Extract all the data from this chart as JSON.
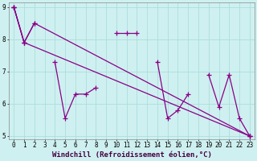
{
  "xlabel": "Windchill (Refroidissement éolien,°C)",
  "background_color": "#cff0f0",
  "line_color": "#880088",
  "grid_color": "#aadddd",
  "x_data": [
    0,
    1,
    2,
    3,
    4,
    5,
    6,
    7,
    8,
    9,
    10,
    11,
    12,
    13,
    14,
    15,
    16,
    17,
    18,
    19,
    20,
    21,
    22,
    23
  ],
  "series1": [
    9.0,
    7.9,
    8.5,
    null,
    7.3,
    5.55,
    6.3,
    6.3,
    6.5,
    null,
    8.2,
    8.2,
    8.2,
    null,
    7.3,
    5.55,
    5.8,
    6.3,
    null,
    6.9,
    5.9,
    6.9,
    5.55,
    5.0
  ],
  "series2_x": [
    0,
    1,
    2,
    23
  ],
  "series2_y": [
    9.0,
    7.9,
    8.5,
    5.0
  ],
  "series3_x": [
    0,
    1,
    23
  ],
  "series3_y": [
    9.0,
    7.9,
    5.0
  ],
  "ylim": [
    5,
    9
  ],
  "xlim": [
    -0.5,
    23.5
  ],
  "yticks": [
    5,
    6,
    7,
    8,
    9
  ],
  "xticks": [
    0,
    1,
    2,
    3,
    4,
    5,
    6,
    7,
    8,
    9,
    10,
    11,
    12,
    13,
    14,
    15,
    16,
    17,
    18,
    19,
    20,
    21,
    22,
    23
  ],
  "tick_fontsize": 5.5,
  "xlabel_fontsize": 6.5,
  "marker_size": 3,
  "line_width": 0.9
}
